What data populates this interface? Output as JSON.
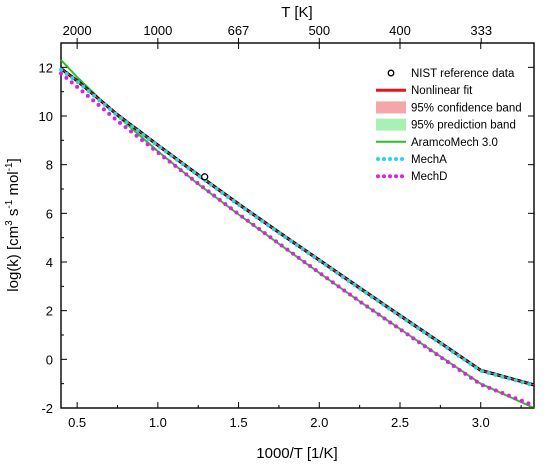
{
  "chart_data": {
    "type": "line",
    "xlabel": "1000/T [1/K]",
    "ylabel_base": "log(k) [cm",
    "ylabel_sup1": "3",
    "ylabel_mid1": " s",
    "ylabel_sup2": "-1",
    "ylabel_mid2": " mol",
    "ylabel_sup3": "-1",
    "ylabel_end": "]",
    "top_xlabel": "T [K]",
    "xlim": [
      0.4,
      3.33
    ],
    "ylim": [
      -2,
      13
    ],
    "x_ticks": [
      0.5,
      1.0,
      1.5,
      2.0,
      2.5,
      3.0
    ],
    "x_tick_labels": [
      "0.5",
      "1.0",
      "1.5",
      "2.0",
      "2.5",
      "3.0"
    ],
    "y_ticks": [
      -2,
      0,
      2,
      4,
      6,
      8,
      10,
      12
    ],
    "y_tick_labels": [
      "-2",
      "0",
      "2",
      "4",
      "6",
      "8",
      "10",
      "12"
    ],
    "top_ticks": [
      2000,
      1000,
      667,
      500,
      400,
      333
    ],
    "top_tick_labels": [
      "2000",
      "1000",
      "667",
      "500",
      "400",
      "333"
    ],
    "grid": false,
    "legend_position": "top-right",
    "series": [
      {
        "name": "NIST reference data",
        "style": "marker",
        "color": "#000000",
        "x": [
          1.29
        ],
        "y": [
          7.5
        ]
      },
      {
        "name": "Nonlinear fit",
        "style": "line",
        "color": "#e8141c",
        "x": [
          0.4,
          0.5,
          0.75,
          1.0,
          1.25,
          1.5,
          1.75,
          2.0,
          2.25,
          2.5,
          2.75,
          3.0,
          3.33
        ],
        "y": [
          11.95,
          11.45,
          10.05,
          8.8,
          7.58,
          6.38,
          5.22,
          4.08,
          2.93,
          1.8,
          0.68,
          -0.45,
          -1.05
        ]
      },
      {
        "name": "95% confidence band",
        "style": "band",
        "color": "#f4a6a8"
      },
      {
        "name": "95% prediction band",
        "style": "band",
        "color": "#a8f0b4"
      },
      {
        "name": "AramcoMech 3.0",
        "style": "line",
        "color": "#22c322",
        "x": [
          0.4,
          0.5,
          0.75,
          1.0,
          1.25,
          1.5,
          1.75,
          2.0,
          2.25,
          2.5,
          2.75,
          3.0,
          3.33
        ],
        "y": [
          12.3,
          11.6,
          10.0,
          8.55,
          7.2,
          5.95,
          4.75,
          3.55,
          2.38,
          1.25,
          0.12,
          -1.0,
          -2.0
        ]
      },
      {
        "name": "MechA",
        "style": "dotted",
        "color": "#22d8e8",
        "x": [
          0.4,
          0.5,
          0.75,
          1.0,
          1.25,
          1.5,
          1.75,
          2.0,
          2.25,
          2.5,
          2.75,
          3.0,
          3.33
        ],
        "y": [
          11.9,
          11.42,
          10.02,
          8.78,
          7.56,
          6.36,
          5.2,
          4.06,
          2.91,
          1.78,
          0.66,
          -0.47,
          -1.07
        ]
      },
      {
        "name": "MechD",
        "style": "dotted",
        "color": "#e020e0",
        "x": [
          0.4,
          0.5,
          0.75,
          1.0,
          1.25,
          1.5,
          1.75,
          2.0,
          2.25,
          2.5,
          2.75,
          3.0,
          3.33
        ],
        "y": [
          11.75,
          11.2,
          9.8,
          8.5,
          7.22,
          5.97,
          4.76,
          3.56,
          2.38,
          1.24,
          0.1,
          -1.03,
          -1.9
        ]
      }
    ]
  }
}
